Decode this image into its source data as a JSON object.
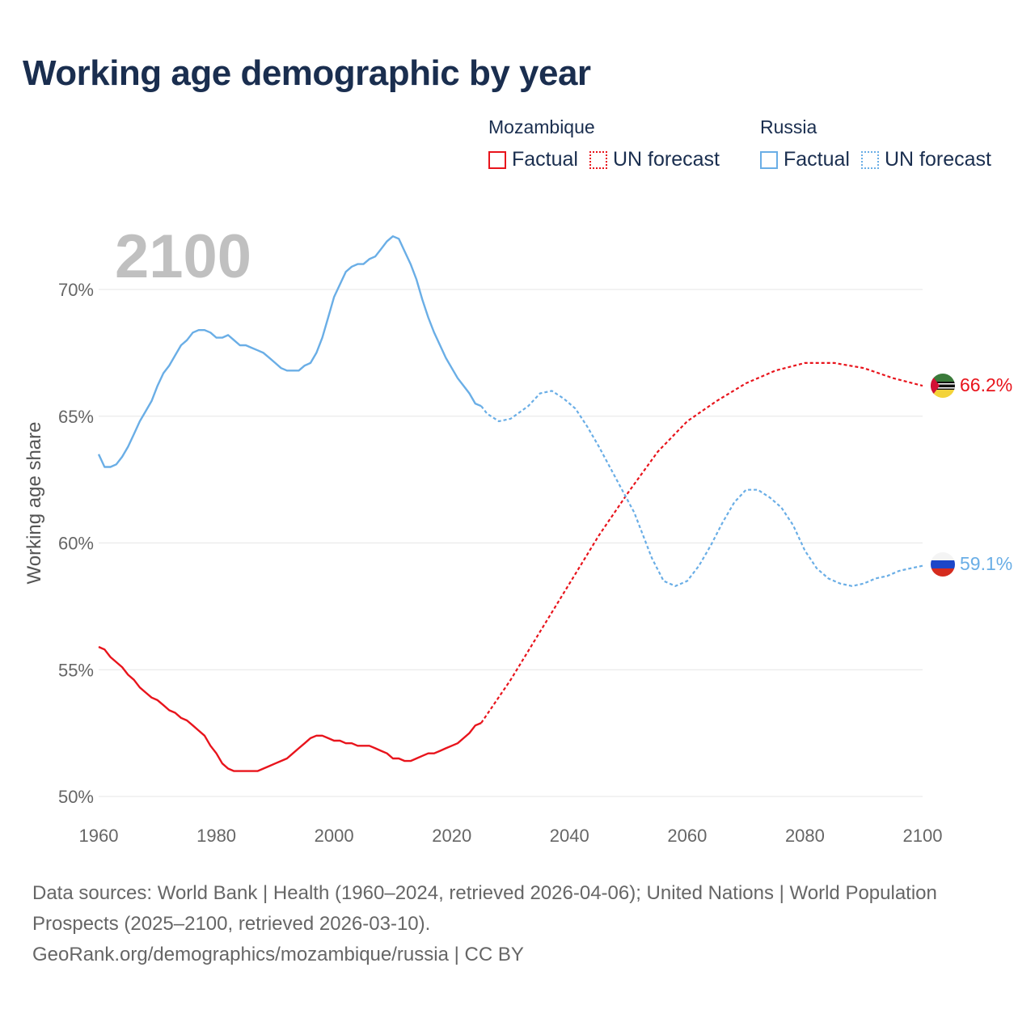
{
  "title": "Working age demographic by year",
  "legend": {
    "groups": [
      {
        "name": "Mozambique",
        "color": "#e8141c",
        "factual_label": "Factual",
        "forecast_label": "UN forecast"
      },
      {
        "name": "Russia",
        "color": "#6aaee6",
        "factual_label": "Factual",
        "forecast_label": "UN forecast"
      }
    ]
  },
  "footer": {
    "sources": "Data sources: World Bank | Health (1960–2024, retrieved 2026-04-06); United Nations | World Population Prospects (2025–2100, retrieved 2026-03-10).",
    "attribution": "GeoRank.org/demographics/mozambique/russia | CC BY"
  },
  "chart_data": {
    "type": "line",
    "year_label": "2100",
    "ylabel": "Working age share",
    "xlim": [
      1960,
      2100
    ],
    "ylim": [
      50,
      72
    ],
    "xticks": [
      "1960",
      "1980",
      "2000",
      "2020",
      "2040",
      "2060",
      "2080",
      "2100"
    ],
    "xtick_values": [
      1960,
      1980,
      2000,
      2020,
      2040,
      2060,
      2080,
      2100
    ],
    "yticks": [
      "50%",
      "55%",
      "60%",
      "65%",
      "70%"
    ],
    "ytick_values": [
      50,
      55,
      60,
      65,
      70
    ],
    "grid": true,
    "series": [
      {
        "name": "Mozambique",
        "color": "#e8141c",
        "end_label": "66.2%",
        "factual": {
          "x": [
            1960,
            1961,
            1962,
            1964,
            1965,
            1966,
            1967,
            1968,
            1969,
            1970,
            1971,
            1972,
            1973,
            1974,
            1975,
            1976,
            1977,
            1978,
            1979,
            1980,
            1981,
            1982,
            1983,
            1984,
            1985,
            1986,
            1987,
            1988,
            1989,
            1990,
            1991,
            1992,
            1993,
            1994,
            1995,
            1996,
            1997,
            1998,
            1999,
            2000,
            2001,
            2002,
            2003,
            2004,
            2005,
            2006,
            2007,
            2008,
            2009,
            2010,
            2011,
            2012,
            2013,
            2014,
            2015,
            2016,
            2017,
            2018,
            2019,
            2020,
            2021,
            2022,
            2023,
            2024,
            2025
          ],
          "y": [
            55.9,
            55.8,
            55.5,
            55.1,
            54.8,
            54.6,
            54.3,
            54.1,
            53.9,
            53.8,
            53.6,
            53.4,
            53.3,
            53.1,
            53.0,
            52.8,
            52.6,
            52.4,
            52.0,
            51.7,
            51.3,
            51.1,
            51.0,
            51.0,
            51.0,
            51.0,
            51.0,
            51.1,
            51.2,
            51.3,
            51.4,
            51.5,
            51.7,
            51.9,
            52.1,
            52.3,
            52.4,
            52.4,
            52.3,
            52.2,
            52.2,
            52.1,
            52.1,
            52.0,
            52.0,
            52.0,
            51.9,
            51.8,
            51.7,
            51.5,
            51.5,
            51.4,
            51.4,
            51.5,
            51.6,
            51.7,
            51.7,
            51.8,
            51.9,
            52.0,
            52.1,
            52.3,
            52.5,
            52.8,
            52.9
          ]
        },
        "forecast": {
          "x": [
            2025,
            2030,
            2035,
            2040,
            2045,
            2050,
            2055,
            2060,
            2065,
            2070,
            2075,
            2080,
            2085,
            2090,
            2095,
            2100
          ],
          "y": [
            52.9,
            54.6,
            56.5,
            58.4,
            60.3,
            62.0,
            63.6,
            64.8,
            65.6,
            66.3,
            66.8,
            67.1,
            67.1,
            66.9,
            66.5,
            66.2
          ]
        }
      },
      {
        "name": "Russia",
        "color": "#6aaee6",
        "end_label": "59.1%",
        "factual": {
          "x": [
            1960,
            1961,
            1962,
            1963,
            1964,
            1965,
            1966,
            1967,
            1968,
            1969,
            1970,
            1971,
            1972,
            1973,
            1974,
            1975,
            1976,
            1977,
            1978,
            1979,
            1980,
            1981,
            1982,
            1983,
            1984,
            1985,
            1986,
            1987,
            1988,
            1989,
            1990,
            1991,
            1992,
            1993,
            1994,
            1995,
            1996,
            1997,
            1998,
            1999,
            2000,
            2001,
            2002,
            2003,
            2004,
            2005,
            2006,
            2007,
            2008,
            2009,
            2010,
            2011,
            2012,
            2013,
            2014,
            2015,
            2016,
            2017,
            2018,
            2019,
            2020,
            2021,
            2022,
            2023,
            2024,
            2025
          ],
          "y": [
            63.5,
            63.0,
            63.0,
            63.1,
            63.4,
            63.8,
            64.3,
            64.8,
            65.2,
            65.6,
            66.2,
            66.7,
            67.0,
            67.4,
            67.8,
            68.0,
            68.3,
            68.4,
            68.4,
            68.3,
            68.1,
            68.1,
            68.2,
            68.0,
            67.8,
            67.8,
            67.7,
            67.6,
            67.5,
            67.3,
            67.1,
            66.9,
            66.8,
            66.8,
            66.8,
            67.0,
            67.1,
            67.5,
            68.1,
            68.9,
            69.7,
            70.2,
            70.7,
            70.9,
            71.0,
            71.0,
            71.2,
            71.3,
            71.6,
            71.9,
            72.1,
            72.0,
            71.5,
            71.0,
            70.4,
            69.6,
            68.9,
            68.3,
            67.8,
            67.3,
            66.9,
            66.5,
            66.2,
            65.9,
            65.5,
            65.4
          ]
        },
        "forecast": {
          "x": [
            2025,
            2026,
            2028,
            2030,
            2033,
            2035,
            2037,
            2039,
            2041,
            2043,
            2045,
            2048,
            2051,
            2054,
            2056,
            2058,
            2060,
            2062,
            2064,
            2066,
            2068,
            2070,
            2072,
            2074,
            2076,
            2078,
            2080,
            2082,
            2084,
            2086,
            2088,
            2090,
            2092,
            2094,
            2096,
            2098,
            2100
          ],
          "y": [
            65.4,
            65.1,
            64.8,
            64.9,
            65.4,
            65.9,
            66.0,
            65.7,
            65.3,
            64.6,
            63.8,
            62.5,
            61.2,
            59.4,
            58.5,
            58.3,
            58.5,
            59.1,
            59.9,
            60.8,
            61.6,
            62.1,
            62.1,
            61.8,
            61.4,
            60.7,
            59.7,
            59.0,
            58.6,
            58.4,
            58.3,
            58.4,
            58.6,
            58.7,
            58.9,
            59.0,
            59.1
          ]
        }
      }
    ]
  }
}
